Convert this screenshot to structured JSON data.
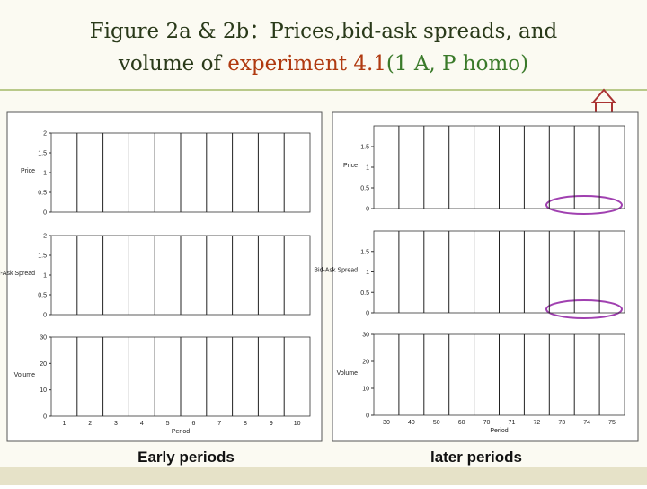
{
  "header": {
    "title_line1": "Figure 2a & 2b：Prices,bid-ask spreads, and",
    "title_line2_prefix": "volume of ",
    "title_line2_highlight": "experiment 4.1",
    "title_line2_suffix": "(1 A, P homo)"
  },
  "figures": [
    {
      "caption": "Early periods",
      "xlabel": "Period",
      "xticks": [
        "1",
        "2",
        "3",
        "4",
        "5",
        "6",
        "7",
        "8",
        "9",
        "10"
      ],
      "panels": [
        {
          "ylabel": "Price",
          "ylim": [
            0,
            2
          ],
          "yticks": [
            0,
            0.5,
            1,
            1.5,
            2
          ]
        },
        {
          "ylabel": "Bid-Ask Spread",
          "ylim": [
            0,
            2
          ],
          "yticks": [
            0,
            0.5,
            1,
            1.5,
            2
          ]
        },
        {
          "ylabel": "Volume",
          "ylim": [
            0,
            30
          ],
          "yticks": [
            0,
            10,
            20,
            30
          ]
        }
      ]
    },
    {
      "caption": "later periods",
      "xlabel": "Period",
      "xticks": [
        "30",
        "40",
        "50",
        "60",
        "70",
        "71",
        "72",
        "73",
        "74",
        "75"
      ],
      "panels": [
        {
          "ylabel": "Price",
          "ylim": [
            0,
            2
          ],
          "yticks": [
            0,
            0.5,
            1,
            1.5
          ]
        },
        {
          "ylabel": "Bid-Ask Spread",
          "ylim": [
            0,
            2
          ],
          "yticks": [
            0,
            0.5,
            1,
            1.5
          ]
        },
        {
          "ylabel": "Volume",
          "ylim": [
            0,
            30
          ],
          "yticks": [
            0,
            10,
            20,
            30
          ]
        }
      ]
    }
  ]
}
